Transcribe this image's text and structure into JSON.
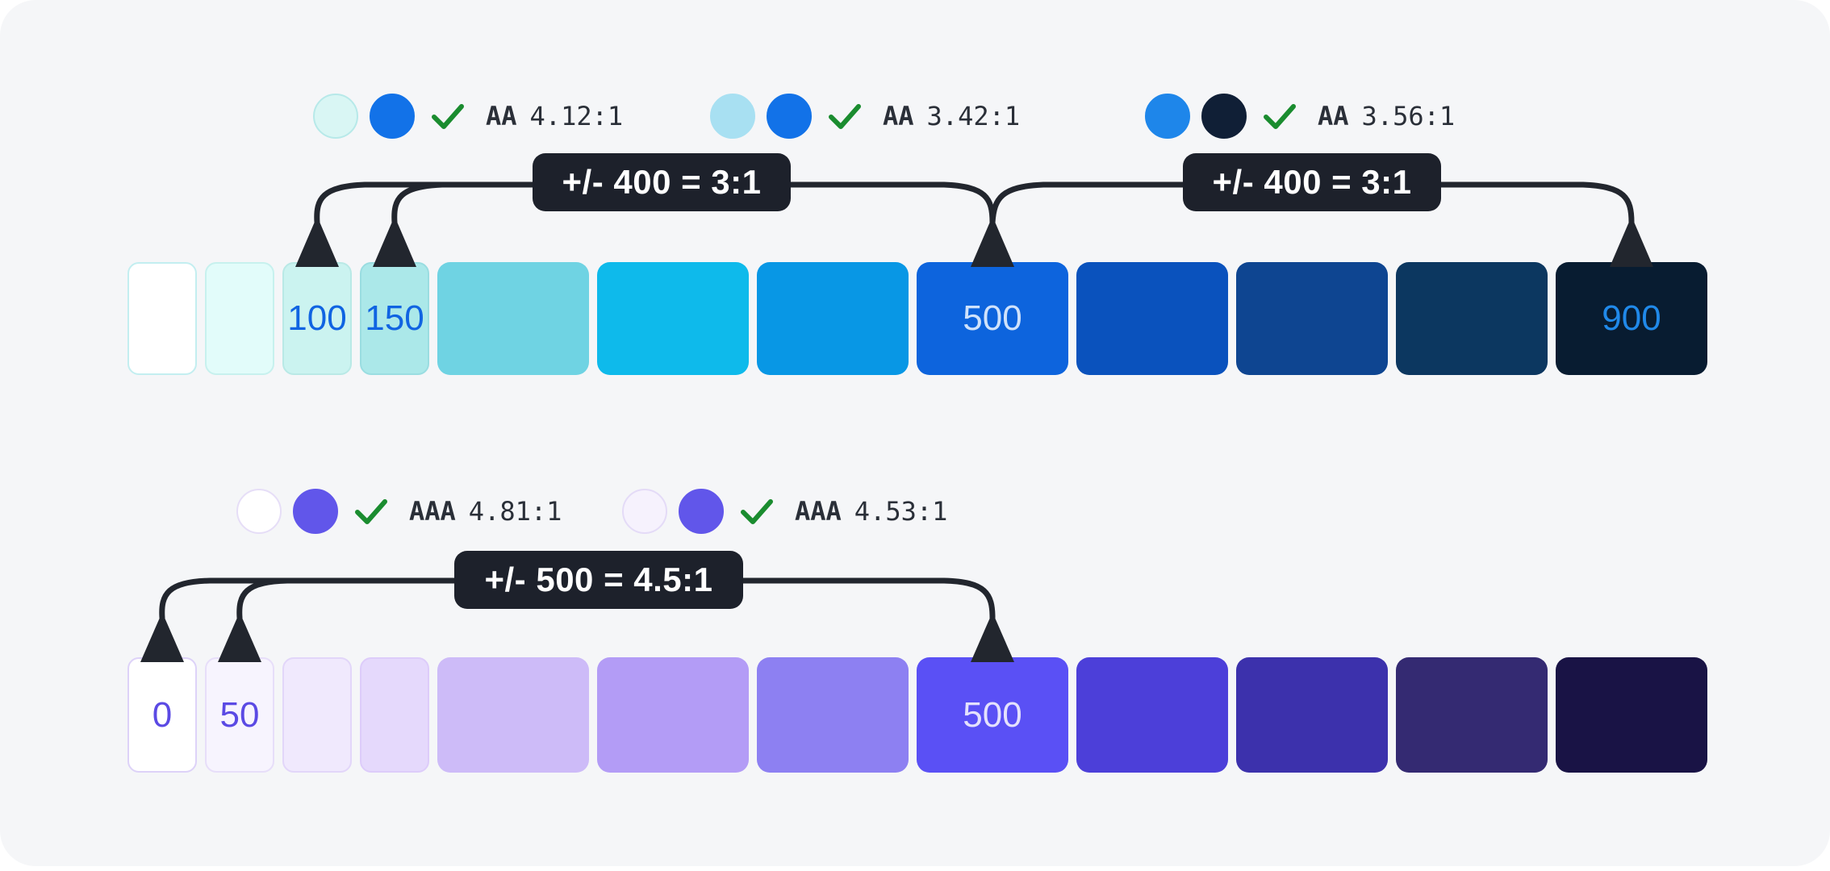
{
  "colors": {
    "background": "#f5f6f8",
    "connector": "#22262e",
    "callout_bg": "#1d212b",
    "callout_text": "#ffffff",
    "check_green": "#1a8c2f",
    "text": "#2a2f38"
  },
  "palette_rows": [
    {
      "name": "blue-scale",
      "callouts": [
        "+/- 400 = 3:1",
        "+/- 400 = 3:1"
      ],
      "annotations": [
        {
          "circle_a": {
            "fill": "#d9f6f4",
            "border": "#b7e9e9"
          },
          "circle_b": {
            "fill": "#1272e8"
          },
          "check_icon": "check-icon",
          "level": "AA",
          "ratio": "4.12:1"
        },
        {
          "circle_a": {
            "fill": "#a8e0f2"
          },
          "circle_b": {
            "fill": "#1272e8"
          },
          "check_icon": "check-icon",
          "level": "AA",
          "ratio": "3.42:1"
        },
        {
          "circle_a": {
            "fill": "#1e86ea"
          },
          "circle_b": {
            "fill": "#101f36"
          },
          "check_icon": "check-icon",
          "level": "AA",
          "ratio": "3.56:1"
        }
      ],
      "swatches": [
        {
          "label": "",
          "fill": "#ffffff",
          "border": "#c3eef0",
          "size": "sm"
        },
        {
          "label": "",
          "fill": "#e2fcfa",
          "border": "#c7f1ee",
          "size": "sm"
        },
        {
          "label": "100",
          "fill": "#cbf3f0",
          "border": "#b9e9e6",
          "size": "sm",
          "label_color": "#1064e2"
        },
        {
          "label": "150",
          "fill": "#abe8e9",
          "border": "#9adde1",
          "size": "sm",
          "label_color": "#1064e2"
        },
        {
          "label": "",
          "fill": "#6fd3e3",
          "size": "lg"
        },
        {
          "label": "",
          "fill": "#0ebaeb",
          "size": "lg"
        },
        {
          "label": "",
          "fill": "#0897e5",
          "size": "lg"
        },
        {
          "label": "500",
          "fill": "#0d64dd",
          "size": "lg",
          "label_color": "#cfe2fb"
        },
        {
          "label": "",
          "fill": "#0a52bd",
          "size": "lg"
        },
        {
          "label": "",
          "fill": "#0e4591",
          "size": "lg"
        },
        {
          "label": "",
          "fill": "#0c3760",
          "size": "lg"
        },
        {
          "label": "900",
          "fill": "#081c31",
          "size": "lg",
          "label_color": "#2089e9"
        }
      ]
    },
    {
      "name": "purple-scale",
      "callouts": [
        "+/- 500 = 4.5:1"
      ],
      "annotations": [
        {
          "circle_a": {
            "fill": "#ffffff",
            "border": "#e6def7"
          },
          "circle_b": {
            "fill": "#6156ea"
          },
          "check_icon": "check-icon",
          "level": "AAA",
          "ratio": "4.81:1"
        },
        {
          "circle_a": {
            "fill": "#f6f2fd",
            "border": "#e4dbf7"
          },
          "circle_b": {
            "fill": "#6156ea"
          },
          "check_icon": "check-icon",
          "level": "AAA",
          "ratio": "4.53:1"
        }
      ],
      "swatches": [
        {
          "label": "0",
          "fill": "#ffffff",
          "border": "#ddd2f8",
          "size": "sm",
          "label_color": "#5b4ae4"
        },
        {
          "label": "50",
          "fill": "#f7f4fe",
          "border": "#e7def9",
          "size": "sm",
          "label_color": "#5b4ae4"
        },
        {
          "label": "",
          "fill": "#f0e9fd",
          "border": "#e2d6f9",
          "size": "sm"
        },
        {
          "label": "",
          "fill": "#e5d9fc",
          "border": "#ddccfa",
          "size": "sm"
        },
        {
          "label": "",
          "fill": "#cdbbf8",
          "size": "lg"
        },
        {
          "label": "",
          "fill": "#b39cf6",
          "size": "lg"
        },
        {
          "label": "",
          "fill": "#8d80f2",
          "size": "lg"
        },
        {
          "label": "500",
          "fill": "#5a50f5",
          "size": "lg",
          "label_color": "#e4e1fd"
        },
        {
          "label": "",
          "fill": "#4c3fd9",
          "size": "lg"
        },
        {
          "label": "",
          "fill": "#3c31ac",
          "size": "lg"
        },
        {
          "label": "",
          "fill": "#342a72",
          "size": "lg"
        },
        {
          "label": "",
          "fill": "#191345",
          "size": "lg"
        }
      ]
    }
  ]
}
